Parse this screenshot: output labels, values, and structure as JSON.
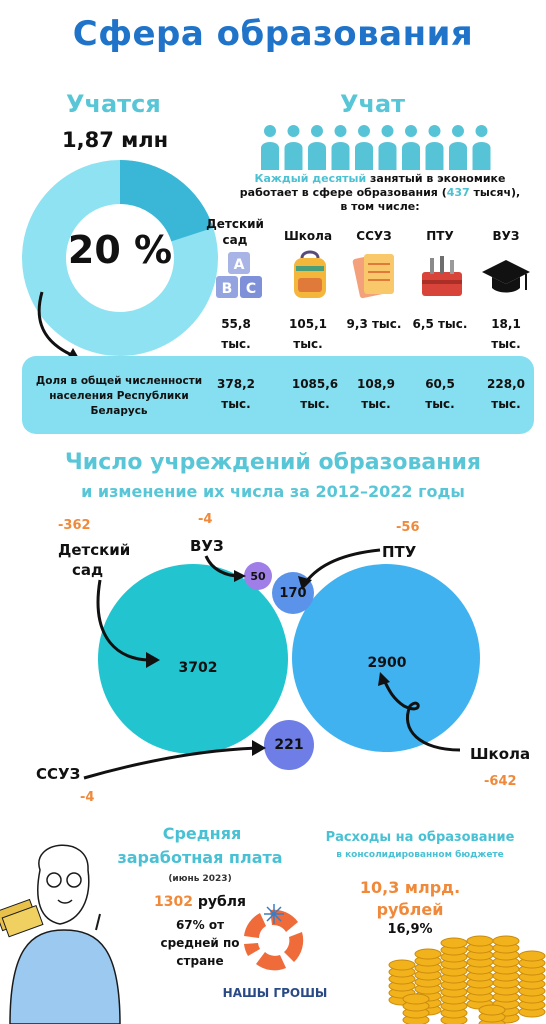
{
  "title": "Сфера образования",
  "learn": {
    "heading": "Учатся",
    "total": "1,87 млн",
    "percent": "20 %",
    "share_fraction": 0.2
  },
  "teach": {
    "heading": "Учат",
    "desc_part1": "Каждый десятый",
    "desc_part2": " занятый в экономике",
    "desc_part3": "работает в сфере образования (",
    "desc_num": "437",
    "desc_part4": " тысяч),",
    "desc_part5": "в том числе:",
    "categories": [
      {
        "label": "Детский сад",
        "icon": "abc-blocks-icon",
        "staff": "55,8 тыс.",
        "students": "378,2 тыс."
      },
      {
        "label": "Школа",
        "icon": "backpack-icon",
        "staff": "105,1 тыс.",
        "students": "1085,6 тыс."
      },
      {
        "label": "ССУЗ",
        "icon": "notebooks-icon",
        "staff": "9,3 тыс.",
        "students": "108,9 тыс."
      },
      {
        "label": "ПТУ",
        "icon": "toolbox-icon",
        "staff": "6,5 тыс.",
        "students": "60,5 тыс."
      },
      {
        "label": "ВУЗ",
        "icon": "graduation-cap-icon",
        "staff": "18,1 тыс.",
        "students": "228,0 тыс."
      }
    ]
  },
  "share_label": "Доля в общей численности населения Республики Беларусь",
  "institutions": {
    "heading1": "Число учреждений образования",
    "heading2": "и изменение их числа за 2012–2022 годы",
    "items": [
      {
        "key": "kindergarten",
        "label_line1": "Детский",
        "label_line2": "сад",
        "count": "3702",
        "change": "-362"
      },
      {
        "key": "university",
        "label_line1": "ВУЗ",
        "label_line2": "",
        "count": "50",
        "change": "-4"
      },
      {
        "key": "vocational",
        "label_line1": "ПТУ",
        "label_line2": "",
        "count": "170",
        "change": "-56"
      },
      {
        "key": "school",
        "label_line1": "Школа",
        "label_line2": "",
        "count": "2900",
        "change": "-642"
      },
      {
        "key": "college",
        "label_line1": "ССУЗ",
        "label_line2": "",
        "count": "221",
        "change": "-4"
      }
    ],
    "colors": {
      "kindergarten": "#22c4cf",
      "school": "#41b2f0",
      "university": "#a07ee8",
      "vocational": "#5b93ea",
      "college": "#6f7ee6"
    }
  },
  "salary": {
    "heading1": "Средняя",
    "heading2": "заработная плата",
    "period": "(июнь 2023)",
    "amount_num": "1302",
    "amount_unit": " рубля",
    "relative1": "67% от",
    "relative2": "средней по",
    "relative3": "стране"
  },
  "spending": {
    "heading1": "Расходы на образование",
    "heading2": "в консолидированном бюджете",
    "amount1": "10,3 млрд.",
    "amount2": "рублей",
    "share": "16,9%"
  },
  "brand": {
    "name": "НАШЫ ГРОШЫ"
  },
  "colors": {
    "title": "#1f74c9",
    "accent": "#58c6d6",
    "orange": "#f0893a",
    "bar": "#86dff0"
  }
}
